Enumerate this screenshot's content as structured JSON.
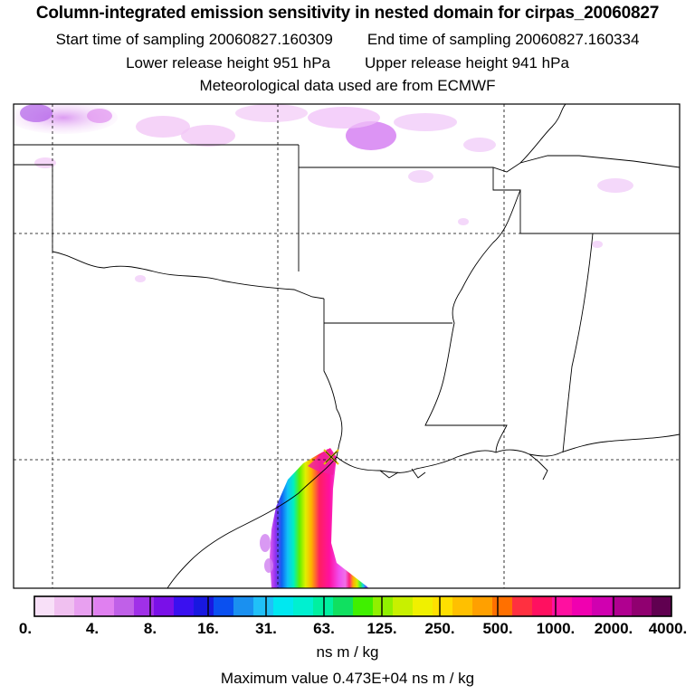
{
  "header": {
    "title": "Column-integrated emission sensitivity in nested domain for cirpas_20060827",
    "start_label": "Start time of sampling",
    "start_value": "20060827.160309",
    "end_label": "End time of sampling",
    "end_value": "20060827.160334",
    "lower_label": "Lower release height",
    "lower_value": "951 hPa",
    "upper_label": "Upper release height",
    "upper_value": "941 hPa",
    "met_line": "Meteorological data used are from ECMWF"
  },
  "colorbar": {
    "colors": [
      "#f8e0f8",
      "#f0c0f0",
      "#e8a0f0",
      "#e080f0",
      "#c060e8",
      "#a030e8",
      "#7a10e8",
      "#3a10f0",
      "#1818e0",
      "#0a50f0",
      "#1a90f0",
      "#20c0f8",
      "#00e8f0",
      "#00f0d0",
      "#00f0a0",
      "#10e060",
      "#40f000",
      "#90f000",
      "#c8f000",
      "#f0f000",
      "#ffe000",
      "#ffc000",
      "#ffa000",
      "#ff7000",
      "#ff3040",
      "#ff1060",
      "#ff10a0",
      "#f000b0",
      "#d000b0",
      "#b00090",
      "#900070",
      "#600050"
    ],
    "tick_labels": [
      "0.",
      "4.",
      "8.",
      "16.",
      "31.",
      "63.",
      "125.",
      "250.",
      "500.",
      "1000.",
      "2000.",
      "4000."
    ],
    "units": "ns m / kg"
  },
  "max_label": "Maximum value",
  "max_value": "0.473E+04 ns m / kg",
  "release_marker": "yellow-x"
}
